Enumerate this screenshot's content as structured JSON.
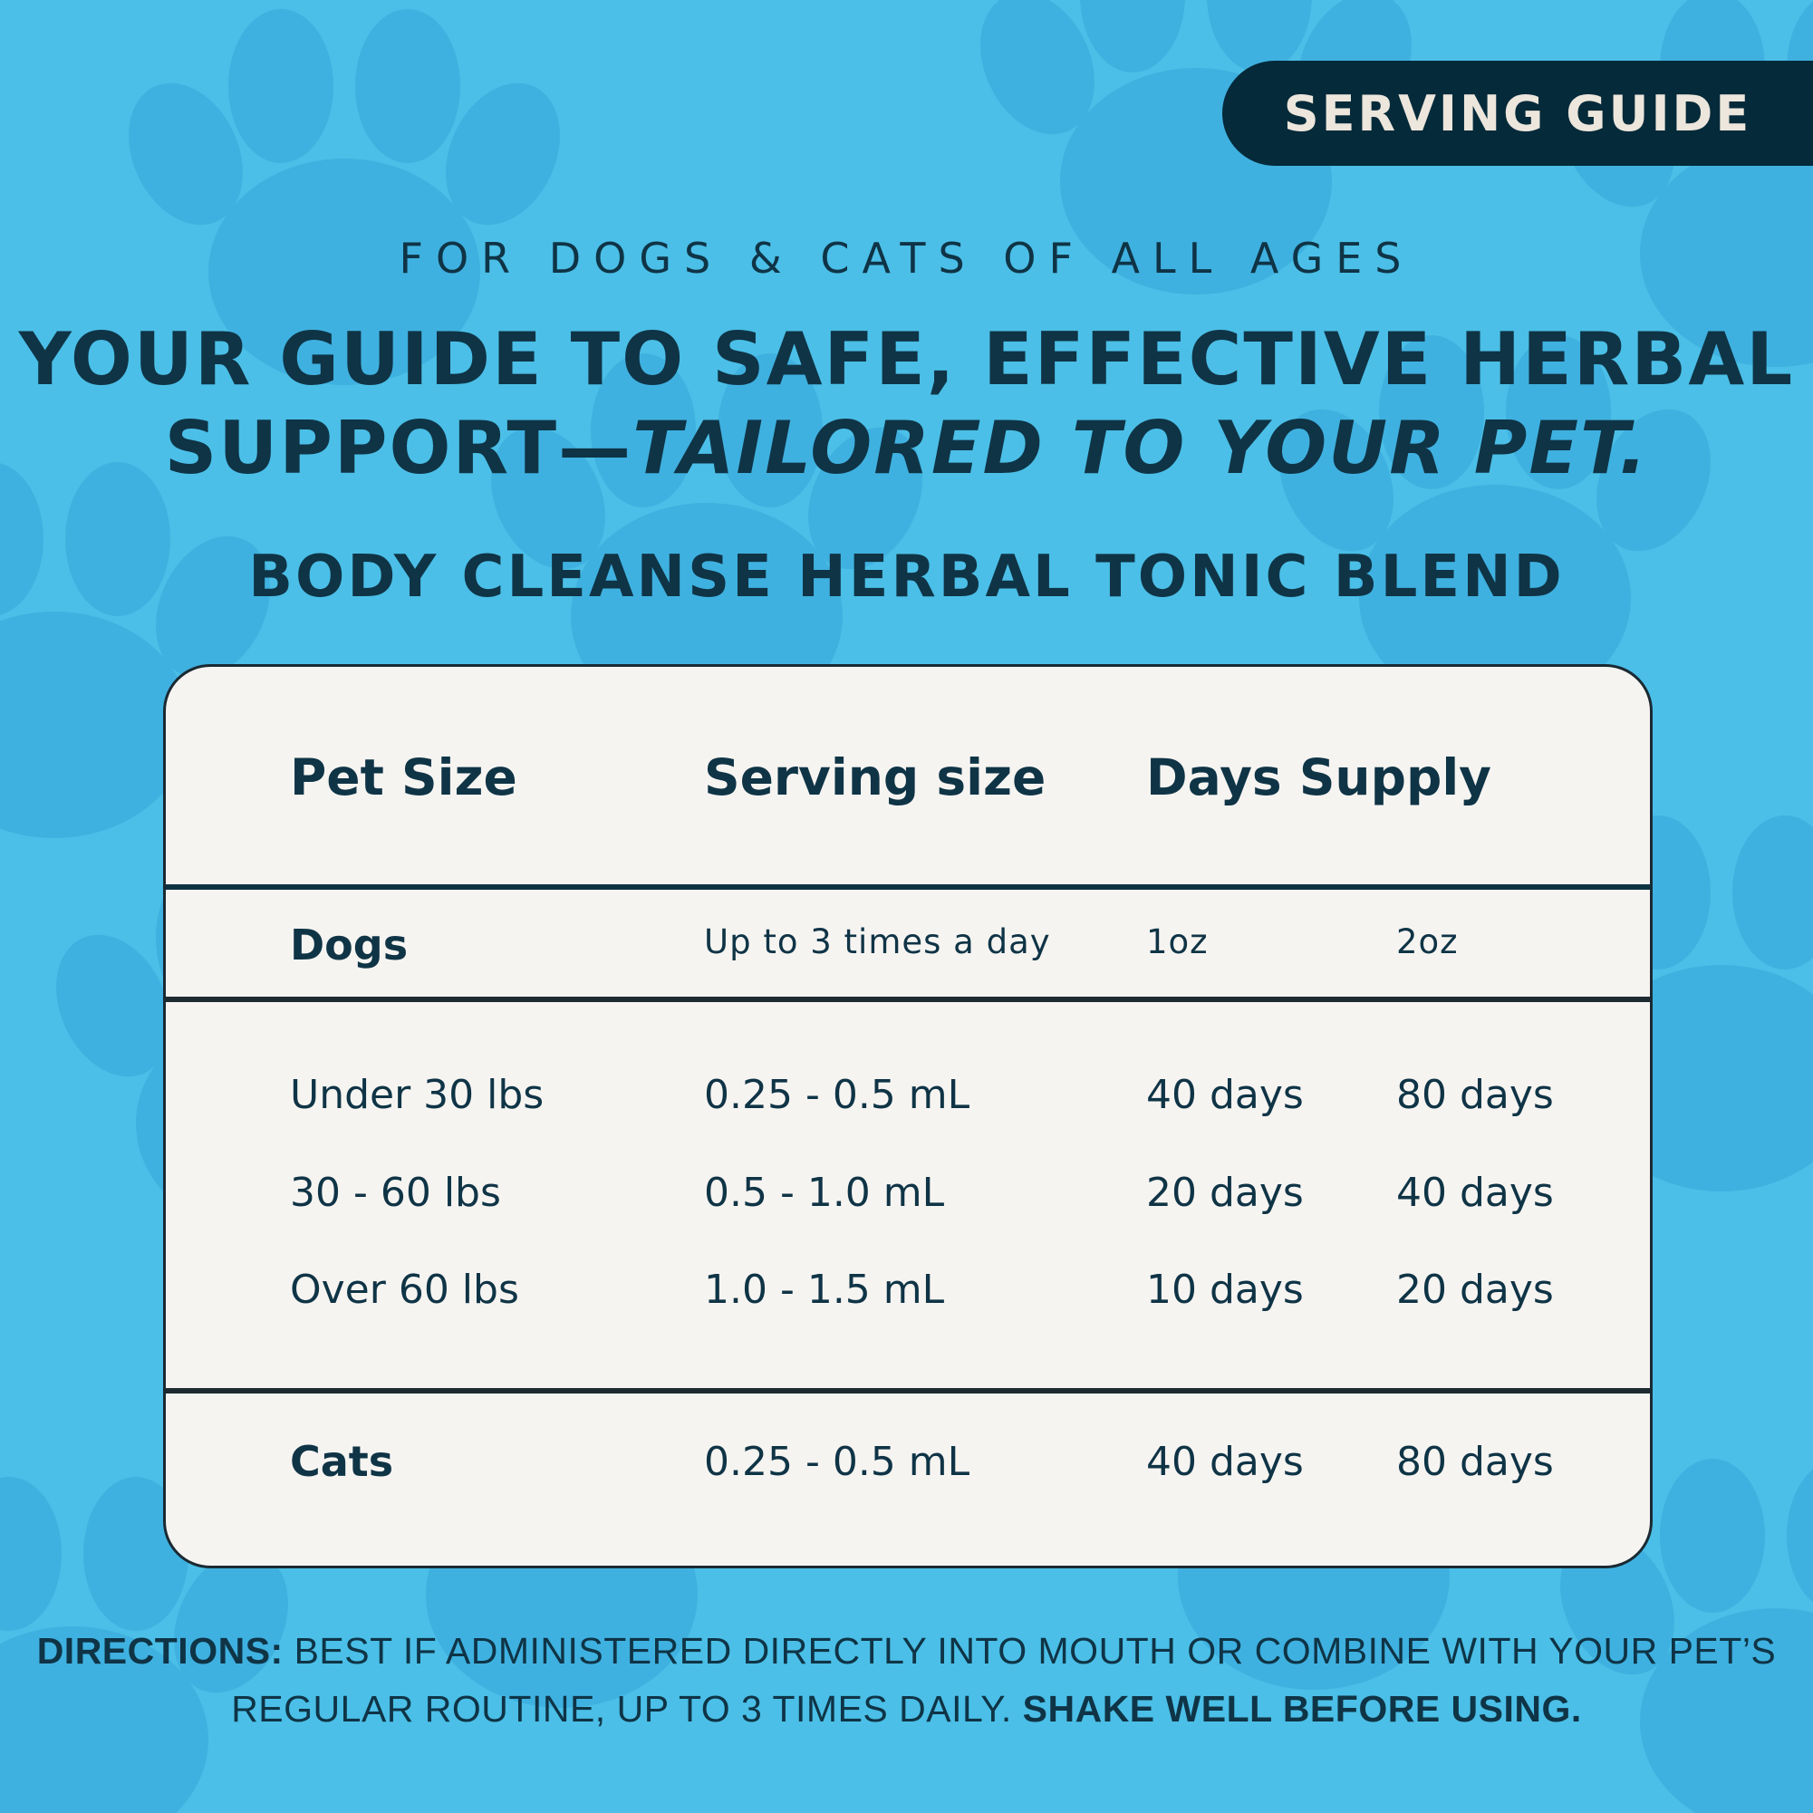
{
  "badge": "SERVING GUIDE",
  "kicker": "FOR DOGS & CATS OF ALL AGES",
  "headline": {
    "line1": "YOUR GUIDE TO SAFE, EFFECTIVE HERBAL",
    "line2_plain": "SUPPORT—",
    "line2_italic": "TAILORED TO YOUR PET."
  },
  "product_name": "BODY CLEANSE HERBAL TONIC BLEND",
  "table": {
    "headers": {
      "pet_size": "Pet Size",
      "serving_size": "Serving size",
      "days_supply": "Days Supply"
    },
    "dogs": {
      "label": "Dogs",
      "frequency": "Up to 3 times a day",
      "size_1": "1oz",
      "size_2": "2oz",
      "rows": [
        {
          "pet_size": "Under 30 lbs",
          "serving": "0.25 - 0.5 mL",
          "supply_1oz": "40 days",
          "supply_2oz": "80 days"
        },
        {
          "pet_size": "30 - 60 lbs",
          "serving": "0.5 - 1.0 mL",
          "supply_1oz": "20 days",
          "supply_2oz": "40 days"
        },
        {
          "pet_size": "Over 60 lbs",
          "serving": "1.0 - 1.5 mL",
          "supply_1oz": "10 days",
          "supply_2oz": "20 days"
        }
      ]
    },
    "cats": {
      "label": "Cats",
      "serving": "0.25 - 0.5 mL",
      "supply_1oz": "40 days",
      "supply_2oz": "80 days"
    }
  },
  "directions": {
    "label": "DIRECTIONS:",
    "text": " BEST IF ADMINISTERED DIRECTLY INTO MOUTH OR COMBINE WITH YOUR PET’S REGULAR ROUTINE, UP TO 3 TIMES DAILY. ",
    "emphasis": "SHAKE WELL BEFORE USING."
  },
  "colors": {
    "background": "#4bbfe7",
    "paw_pattern": "#3fb1e0",
    "badge_bg": "#052a3a",
    "badge_text": "#ece6dc",
    "text": "#0f3446",
    "card_bg": "#f6f4f1"
  }
}
